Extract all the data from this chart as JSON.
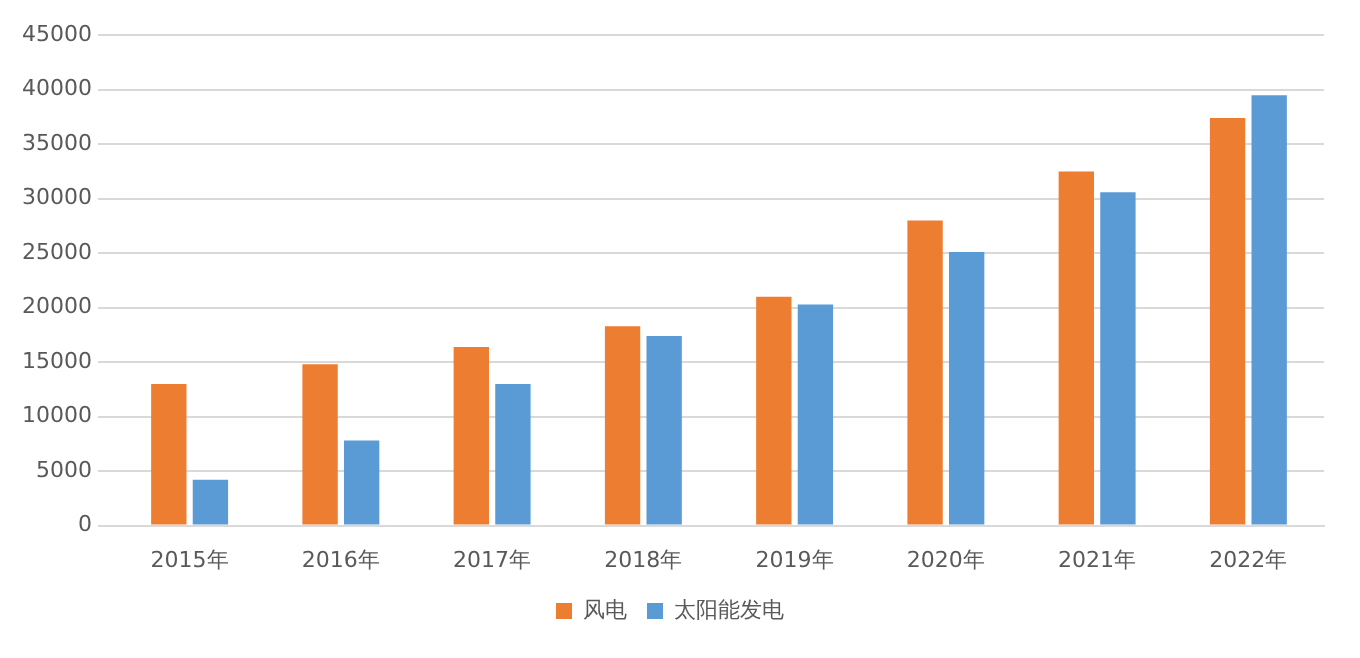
{
  "chart_data": {
    "type": "bar",
    "categories": [
      "2015年",
      "2016年",
      "2017年",
      "2018年",
      "2019年",
      "2020年",
      "2021年",
      "2022年"
    ],
    "series": [
      {
        "name": "风电",
        "color": "#ed7d31",
        "values": [
          13000,
          14800,
          16400,
          18300,
          21000,
          28000,
          32500,
          37400
        ]
      },
      {
        "name": "太阳能发电",
        "color": "#5b9bd5",
        "values": [
          4200,
          7800,
          13000,
          17400,
          20300,
          25100,
          30600,
          39500
        ]
      }
    ],
    "ylim": [
      0,
      45000
    ],
    "yticks": [
      0,
      5000,
      10000,
      15000,
      20000,
      25000,
      30000,
      35000,
      40000,
      45000
    ],
    "grid": "y",
    "legend": "bottom"
  }
}
